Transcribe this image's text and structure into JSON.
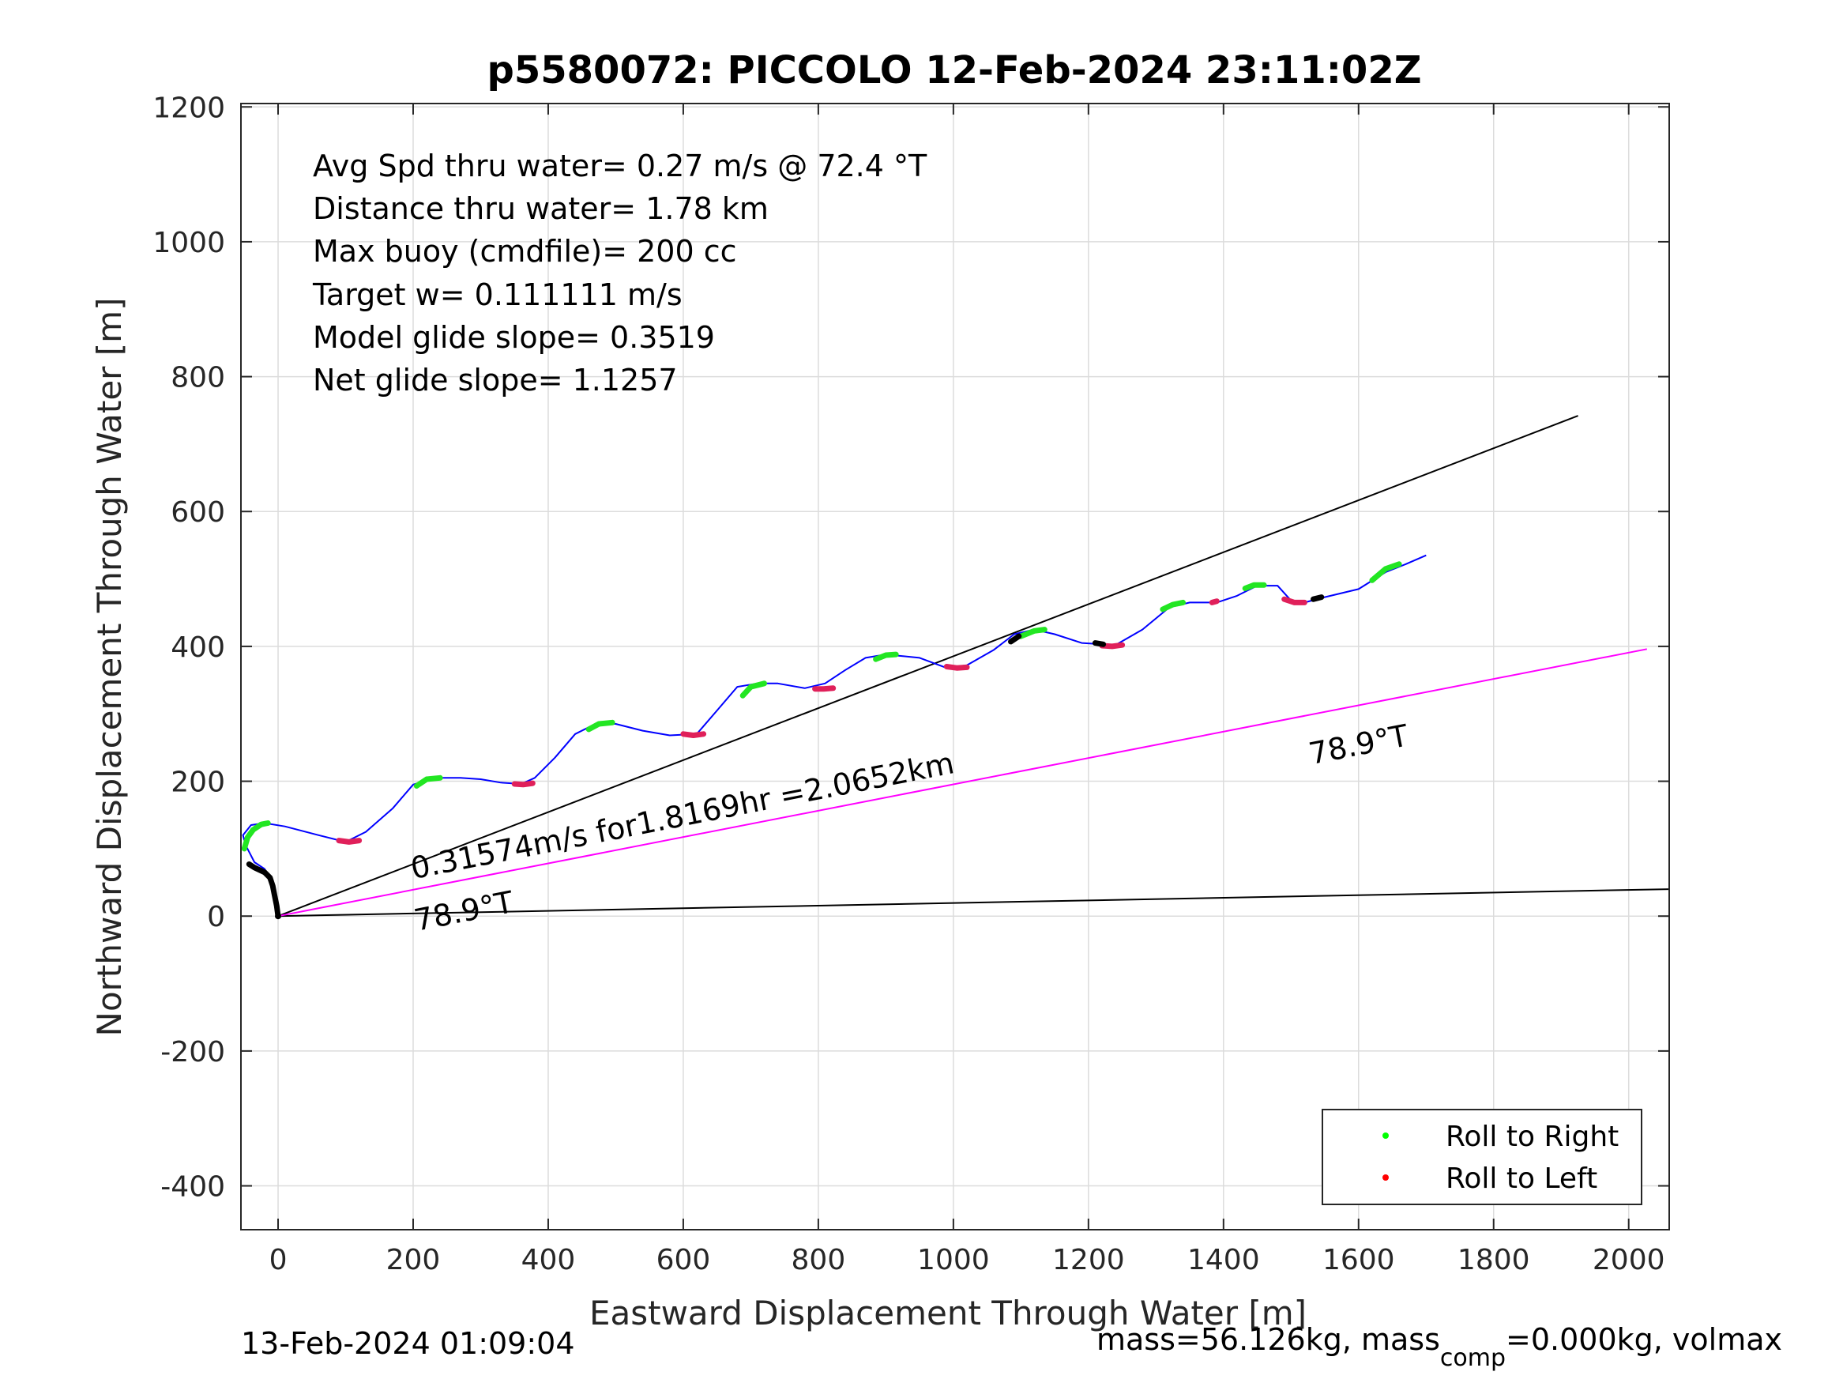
{
  "chart_data": {
    "type": "line",
    "title": "p5580072: PICCOLO 12-Feb-2024 23:11:02Z",
    "xlabel": "Eastward Displacement Through Water [m]",
    "ylabel": "Northward Displacement Through Water [m]",
    "xlim": [
      -55,
      2060
    ],
    "ylim": [
      -465,
      1205
    ],
    "xticks": [
      0,
      200,
      400,
      600,
      800,
      1000,
      1200,
      1400,
      1600,
      1800,
      2000
    ],
    "yticks": [
      -400,
      -200,
      0,
      200,
      400,
      600,
      800,
      1000,
      1200
    ],
    "grid": true,
    "legend_position": "bottom-right",
    "legend": [
      {
        "label": "Roll to Right",
        "color": "#00ff00"
      },
      {
        "label": "Roll to Left",
        "color": "#ff0000"
      }
    ],
    "stats": [
      "Avg Spd thru water=  0.27 m/s @  72.4 °T",
      "Distance thru water=  1.78 km",
      "Max buoy (cmdfile)= 200 cc",
      "Target w= 0.111111 m/s",
      "Model glide slope= 0.3519",
      "Net glide slope= 1.1257"
    ],
    "track": {
      "name": "",
      "color": "#0000ff",
      "x": [
        0,
        -5,
        -10,
        -20,
        -35,
        -48,
        -52,
        -40,
        -20,
        10,
        60,
        100,
        130,
        170,
        200,
        230,
        270,
        300,
        330,
        360,
        380,
        410,
        440,
        470,
        500,
        540,
        580,
        620,
        650,
        680,
        710,
        740,
        780,
        810,
        840,
        870,
        900,
        950,
        990,
        1020,
        1060,
        1090,
        1120,
        1150,
        1190,
        1240,
        1280,
        1320,
        1350,
        1390,
        1420,
        1450,
        1480,
        1500,
        1520,
        1550,
        1600,
        1640,
        1670,
        1700
      ],
      "y": [
        0,
        30,
        55,
        70,
        80,
        105,
        120,
        135,
        138,
        133,
        120,
        110,
        125,
        160,
        195,
        205,
        205,
        203,
        198,
        196,
        205,
        235,
        270,
        285,
        285,
        275,
        268,
        270,
        305,
        340,
        345,
        345,
        338,
        345,
        365,
        383,
        388,
        383,
        368,
        372,
        395,
        418,
        425,
        418,
        405,
        402,
        425,
        458,
        465,
        465,
        475,
        490,
        490,
        468,
        465,
        473,
        485,
        510,
        522,
        535
      ]
    },
    "roll_right_segments": [
      {
        "x": [
          -50,
          -45,
          -37,
          -25,
          -15
        ],
        "y": [
          100,
          117,
          128,
          136,
          138
        ]
      },
      {
        "x": [
          205,
          220,
          240
        ],
        "y": [
          193,
          203,
          205
        ]
      },
      {
        "x": [
          460,
          475,
          495
        ],
        "y": [
          277,
          285,
          287
        ]
      },
      {
        "x": [
          688,
          700,
          720
        ],
        "y": [
          327,
          340,
          345
        ]
      },
      {
        "x": [
          885,
          900,
          915
        ],
        "y": [
          381,
          387,
          388
        ]
      },
      {
        "x": [
          1100,
          1120,
          1135
        ],
        "y": [
          415,
          423,
          425
        ]
      },
      {
        "x": [
          1310,
          1325,
          1340
        ],
        "y": [
          455,
          462,
          465
        ]
      },
      {
        "x": [
          1432,
          1445,
          1460
        ],
        "y": [
          486,
          491,
          491
        ]
      },
      {
        "x": [
          1620,
          1640,
          1660
        ],
        "y": [
          498,
          515,
          522
        ]
      }
    ],
    "roll_left_segments": [
      {
        "x": [
          90,
          105,
          120
        ],
        "y": [
          112,
          110,
          112
        ]
      },
      {
        "x": [
          350,
          363,
          377
        ],
        "y": [
          196,
          195,
          197
        ]
      },
      {
        "x": [
          600,
          615,
          630
        ],
        "y": [
          270,
          268,
          270
        ]
      },
      {
        "x": [
          795,
          808,
          822
        ],
        "y": [
          337,
          337,
          338
        ]
      },
      {
        "x": [
          990,
          1005,
          1020
        ],
        "y": [
          370,
          368,
          369
        ]
      },
      {
        "x": [
          1220,
          1235,
          1250
        ],
        "y": [
          401,
          400,
          402
        ]
      },
      {
        "x": [
          1383,
          1390
        ],
        "y": [
          465,
          467
        ]
      },
      {
        "x": [
          1490,
          1505,
          1520
        ],
        "y": [
          470,
          465,
          465
        ]
      }
    ],
    "black_segments": [
      {
        "x": [
          0,
          -2,
          -5,
          -8,
          -12,
          -20,
          -35,
          -43
        ],
        "y": [
          0,
          15,
          30,
          45,
          57,
          65,
          72,
          77
        ]
      },
      {
        "x": [
          1085,
          1097
        ],
        "y": [
          407,
          415
        ]
      },
      {
        "x": [
          1210,
          1222
        ],
        "y": [
          405,
          403
        ]
      },
      {
        "x": [
          1533,
          1545
        ],
        "y": [
          470,
          473
        ]
      }
    ],
    "reference_lines": [
      {
        "x": [
          0,
          1925
        ],
        "y": [
          0,
          742
        ],
        "color": "#000000"
      },
      {
        "x": [
          0,
          2060
        ],
        "y": [
          0,
          40
        ],
        "color": "#000000"
      },
      {
        "x": [
          0,
          2027
        ],
        "y": [
          0,
          396
        ],
        "color": "#ff00ff"
      }
    ],
    "annotations": [
      {
        "text": "0.31574m/s for1.8169hr =2.0652km",
        "x": 200,
        "y": 55,
        "angle": 11.1
      },
      {
        "text": "78.9°T",
        "x": 205,
        "y": -22,
        "angle": 11.1
      },
      {
        "text": "78.9°T",
        "x": 1530,
        "y": 225,
        "angle": 11.1
      }
    ],
    "footer_left": "13-Feb-2024 01:09:04",
    "footer_right_parts": [
      "mass=56.126kg, mass",
      "comp",
      "=0.000kg, volmax"
    ]
  }
}
